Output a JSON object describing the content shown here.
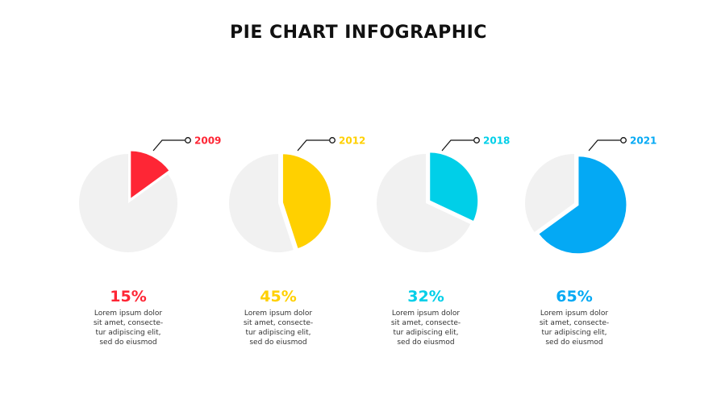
{
  "chart_data": {
    "type": "pie",
    "title": "PIE CHART INFOGRAPHIC",
    "background_slice_color": "#f1f1f1",
    "charts": [
      {
        "year": "2009",
        "value": 15,
        "label": "15%",
        "color": "#fe2635",
        "description": [
          "Lorem ipsum dolor",
          "sit amet, consecte-",
          "tur adipiscing elit,",
          "sed do eiusmod"
        ]
      },
      {
        "year": "2012",
        "value": 45,
        "label": "45%",
        "color": "#ffd000",
        "description": [
          "Lorem ipsum dolor",
          "sit amet, consecte-",
          "tur adipiscing elit,",
          "sed do eiusmod"
        ]
      },
      {
        "year": "2018",
        "value": 32,
        "label": "32%",
        "color": "#00cfe8",
        "description": [
          "Lorem ipsum dolor",
          "sit amet, consecte-",
          "tur adipiscing elit,",
          "sed do eiusmod"
        ]
      },
      {
        "year": "2021",
        "value": 65,
        "label": "65%",
        "color": "#04a9f4",
        "description": [
          "Lorem ipsum dolor",
          "sit amet, consecte-",
          "tur adipiscing elit,",
          "sed do eiusmod"
        ]
      }
    ]
  }
}
